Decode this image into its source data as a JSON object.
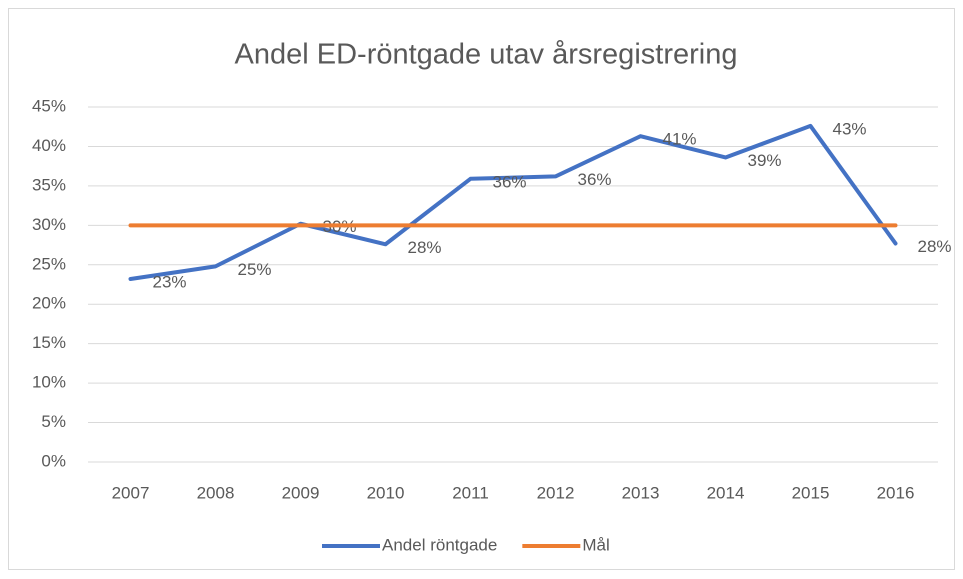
{
  "chart_data": {
    "type": "line",
    "title": "Andel ED-röntgade utav årsregistrering",
    "categories": [
      "2007",
      "2008",
      "2009",
      "2010",
      "2011",
      "2012",
      "2013",
      "2014",
      "2015",
      "2016"
    ],
    "series": [
      {
        "name": "Andel röntgade",
        "color": "#4472c4",
        "values": [
          23.2,
          24.8,
          30.2,
          27.6,
          35.9,
          36.2,
          41.3,
          38.6,
          42.6,
          27.7
        ],
        "value_labels": [
          "23%",
          "25%",
          "30%",
          "28%",
          "36%",
          "36%",
          "41%",
          "39%",
          "43%",
          "28%"
        ]
      },
      {
        "name": "Mål",
        "color": "#ed7d31",
        "values": [
          30,
          30,
          30,
          30,
          30,
          30,
          30,
          30,
          30,
          30
        ]
      }
    ],
    "ylim": [
      0,
      45
    ],
    "yticks": [
      {
        "value": 0,
        "label": "0%"
      },
      {
        "value": 5,
        "label": "5%"
      },
      {
        "value": 10,
        "label": "10%"
      },
      {
        "value": 15,
        "label": "15%"
      },
      {
        "value": 20,
        "label": "20%"
      },
      {
        "value": 25,
        "label": "25%"
      },
      {
        "value": 30,
        "label": "30%"
      },
      {
        "value": 35,
        "label": "35%"
      },
      {
        "value": 40,
        "label": "40%"
      },
      {
        "value": 45,
        "label": "45%"
      }
    ],
    "grid": true,
    "legend": "bottom"
  }
}
